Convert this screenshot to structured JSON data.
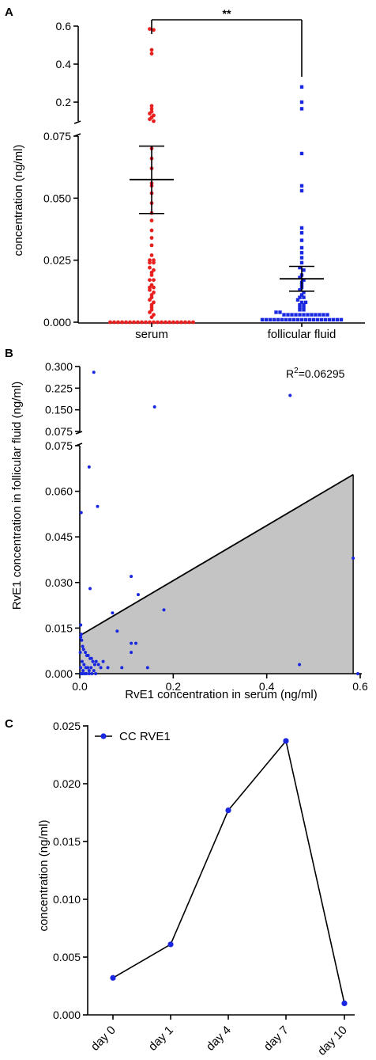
{
  "figure": {
    "panel_letters": [
      "A",
      "B",
      "C"
    ]
  },
  "chart_data": [
    {
      "panel": "A",
      "type": "scatter",
      "ylabel": "concentration (ng/ml)",
      "categories": [
        "serum",
        "follicular fluid"
      ],
      "y_axis_broken": true,
      "y_segments": [
        {
          "range": [
            0,
            0.075
          ],
          "ticks": [
            "0.000",
            "0.025",
            "0.050",
            "0.075"
          ]
        },
        {
          "range": [
            0.1,
            0.6
          ],
          "ticks": [
            "0.2",
            "0.4",
            "0.6"
          ]
        }
      ],
      "significance": "**",
      "colors": {
        "serum": "#e8201f",
        "follicular fluid": "#1a27e0"
      },
      "series": [
        {
          "name": "serum",
          "mean": 0.0575,
          "sem_upper": 0.071,
          "sem_lower": 0.0438,
          "values": [
            0.585,
            0.58,
            0.475,
            0.455,
            0.18,
            0.165,
            0.15,
            0.14,
            0.13,
            0.12,
            0.11,
            0.1,
            0.07,
            0.066,
            0.062,
            0.056,
            0.055,
            0.052,
            0.048,
            0.044,
            0.041,
            0.037,
            0.034,
            0.031,
            0.027,
            0.025,
            0.025,
            0.024,
            0.024,
            0.022,
            0.021,
            0.02,
            0.019,
            0.017,
            0.017,
            0.015,
            0.014,
            0.014,
            0.013,
            0.012,
            0.011,
            0.01,
            0.009,
            0.008,
            0.007,
            0.006,
            0.005,
            0.004,
            0.003,
            0.002,
            0.0,
            0.0,
            0.0,
            0.0,
            0.0,
            0.0,
            0.0,
            0.0,
            0.0,
            0.0,
            0.0,
            0.0,
            0.0,
            0.0,
            0.0,
            0.0,
            0.0,
            0.0,
            0.0,
            0.0,
            0.0,
            0.0
          ]
        },
        {
          "name": "follicular fluid",
          "mean": 0.0175,
          "sem_upper": 0.0225,
          "sem_lower": 0.0125,
          "values": [
            0.28,
            0.2,
            0.165,
            0.068,
            0.055,
            0.053,
            0.038,
            0.036,
            0.033,
            0.03,
            0.028,
            0.026,
            0.024,
            0.022,
            0.021,
            0.019,
            0.018,
            0.017,
            0.016,
            0.015,
            0.014,
            0.013,
            0.012,
            0.011,
            0.01,
            0.01,
            0.009,
            0.008,
            0.008,
            0.007,
            0.007,
            0.006,
            0.006,
            0.005,
            0.005,
            0.004,
            0.004,
            0.003,
            0.003,
            0.003,
            0.003,
            0.003,
            0.003,
            0.003,
            0.003,
            0.003,
            0.003,
            0.003,
            0.003,
            0.001,
            0.001,
            0.001,
            0.001,
            0.001,
            0.001,
            0.001,
            0.001,
            0.001,
            0.001,
            0.001,
            0.001,
            0.001,
            0.001,
            0.001,
            0.001,
            0.001,
            0.001,
            0.001,
            0.001,
            0.001
          ]
        }
      ]
    },
    {
      "panel": "B",
      "type": "scatter",
      "xlabel": "RvE1 concentration in serum (ng/ml)",
      "ylabel": "RvE1 concentration in follicular fluid (ng/ml)",
      "annotation": {
        "base": "R",
        "sup": "2",
        "rest": "=0.06295"
      },
      "xlim": [
        0,
        0.6
      ],
      "x_ticks": [
        "0.0",
        "0.2",
        "0.4",
        "0.6"
      ],
      "y_axis_broken": true,
      "y_segments": [
        {
          "range": [
            0,
            0.075
          ],
          "ticks": [
            "0.000",
            "0.015",
            "0.030",
            "0.045",
            "0.060",
            "0.075"
          ]
        },
        {
          "range": [
            0.075,
            0.3
          ],
          "ticks": [
            "0.075",
            "0.150",
            "0.225",
            "0.300"
          ]
        }
      ],
      "regression": {
        "x": [
          0,
          0.585
        ],
        "y": [
          0.0125,
          0.0655
        ]
      },
      "color": "#1a27e0",
      "points": [
        {
          "x": 0.03,
          "y": 0.28
        },
        {
          "x": 0.45,
          "y": 0.2
        },
        {
          "x": 0.16,
          "y": 0.16
        },
        {
          "x": 0.02,
          "y": 0.068
        },
        {
          "x": 0.038,
          "y": 0.055
        },
        {
          "x": 0.003,
          "y": 0.053
        },
        {
          "x": 0.585,
          "y": 0.038
        },
        {
          "x": 0.11,
          "y": 0.032
        },
        {
          "x": 0.022,
          "y": 0.028
        },
        {
          "x": 0.125,
          "y": 0.026
        },
        {
          "x": 0.18,
          "y": 0.021
        },
        {
          "x": 0.07,
          "y": 0.02
        },
        {
          "x": 0.002,
          "y": 0.016
        },
        {
          "x": 0.08,
          "y": 0.014
        },
        {
          "x": 0.003,
          "y": 0.013
        },
        {
          "x": 0.11,
          "y": 0.01
        },
        {
          "x": 0.12,
          "y": 0.01
        },
        {
          "x": 0.11,
          "y": 0.007
        },
        {
          "x": 0.05,
          "y": 0.004
        },
        {
          "x": 0.47,
          "y": 0.003
        },
        {
          "x": 0.09,
          "y": 0.002
        },
        {
          "x": 0.145,
          "y": 0.002
        },
        {
          "x": 0.595,
          "y": 0.0
        },
        {
          "x": 0.002,
          "y": 0.012
        },
        {
          "x": 0.004,
          "y": 0.011
        },
        {
          "x": 0.006,
          "y": 0.009
        },
        {
          "x": 0.008,
          "y": 0.008
        },
        {
          "x": 0.012,
          "y": 0.007
        },
        {
          "x": 0.015,
          "y": 0.006
        },
        {
          "x": 0.018,
          "y": 0.006
        },
        {
          "x": 0.022,
          "y": 0.005
        },
        {
          "x": 0.025,
          "y": 0.005
        },
        {
          "x": 0.028,
          "y": 0.004
        },
        {
          "x": 0.032,
          "y": 0.003
        },
        {
          "x": 0.035,
          "y": 0.004
        },
        {
          "x": 0.04,
          "y": 0.003
        },
        {
          "x": 0.005,
          "y": 0.004
        },
        {
          "x": 0.009,
          "y": 0.003
        },
        {
          "x": 0.013,
          "y": 0.002
        },
        {
          "x": 0.017,
          "y": 0.002
        },
        {
          "x": 0.02,
          "y": 0.001
        },
        {
          "x": 0.024,
          "y": 0.002
        },
        {
          "x": 0.03,
          "y": 0.001
        },
        {
          "x": 0.045,
          "y": 0.002
        },
        {
          "x": 0.06,
          "y": 0.002
        },
        {
          "x": 0.003,
          "y": 0.0
        },
        {
          "x": 0.006,
          "y": 0.0
        },
        {
          "x": 0.01,
          "y": 0.0
        },
        {
          "x": 0.014,
          "y": 0.0
        },
        {
          "x": 0.02,
          "y": 0.0
        },
        {
          "x": 0.026,
          "y": 0.0
        },
        {
          "x": 0.034,
          "y": 0.0
        },
        {
          "x": 0.001,
          "y": 0.007
        },
        {
          "x": 0.002,
          "y": 0.002
        },
        {
          "x": 0.007,
          "y": 0.001
        }
      ]
    },
    {
      "panel": "C",
      "type": "line",
      "ylabel": "concentration (ng/ml)",
      "categories": [
        "day 0",
        "day 1",
        "day 4",
        "day 7",
        "day 10"
      ],
      "ylim": [
        0,
        0.025
      ],
      "y_ticks": [
        "0.000",
        "0.005",
        "0.010",
        "0.015",
        "0.020",
        "0.025"
      ],
      "series": [
        {
          "name": "CC RVE1",
          "values": [
            0.0032,
            0.0061,
            0.0177,
            0.0237,
            0.001
          ],
          "color": "#1a27e0"
        }
      ]
    }
  ]
}
